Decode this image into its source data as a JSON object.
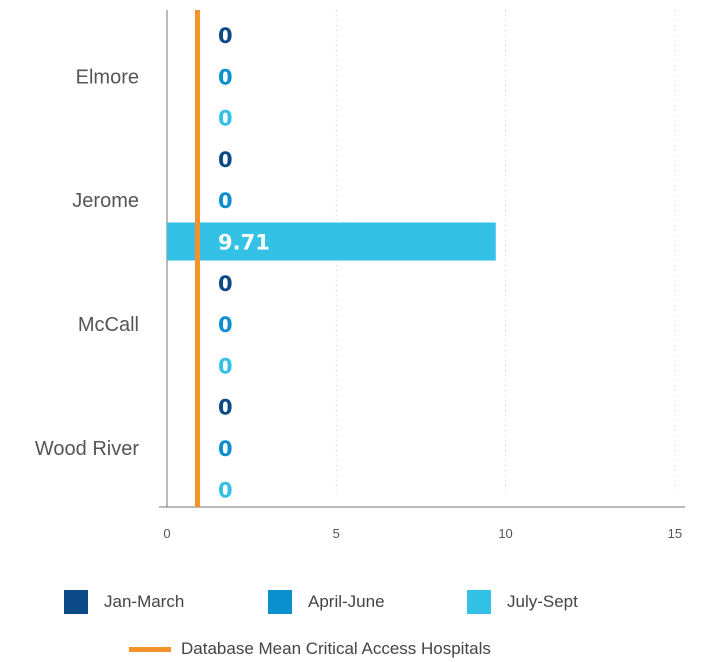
{
  "chart_data": {
    "type": "bar",
    "orientation": "horizontal",
    "categories": [
      "Elmore",
      "Jerome",
      "McCall",
      "Wood River"
    ],
    "series": [
      {
        "name": "Jan-March",
        "color": "#0b4a86",
        "values": [
          0,
          0,
          0,
          0
        ],
        "labels": [
          "0",
          "0",
          "0",
          "0"
        ]
      },
      {
        "name": "April-June",
        "color": "#0b8fcf",
        "values": [
          0,
          0,
          0,
          0
        ],
        "labels": [
          "0",
          "0",
          "0",
          "0"
        ]
      },
      {
        "name": "July-Sept",
        "color": "#33c1e6",
        "values": [
          0,
          9.71,
          0,
          0
        ],
        "labels": [
          "0",
          "9.71",
          "0",
          "0"
        ]
      }
    ],
    "reference_line": {
      "name": "Database Mean Critical Access Hospitals",
      "value": 0.9,
      "color": "#f5922b"
    },
    "xlim": [
      0,
      15.3
    ],
    "xticks": [
      0,
      5,
      10,
      15
    ],
    "tick_labels": [
      "0",
      "5",
      "10",
      "15"
    ],
    "grid": "vertical dotted",
    "legend_position": "bottom"
  },
  "legend": {
    "series": [
      "Jan-March",
      "April-June",
      "July-Sept"
    ],
    "line": "Database Mean Critical Access Hospitals"
  }
}
